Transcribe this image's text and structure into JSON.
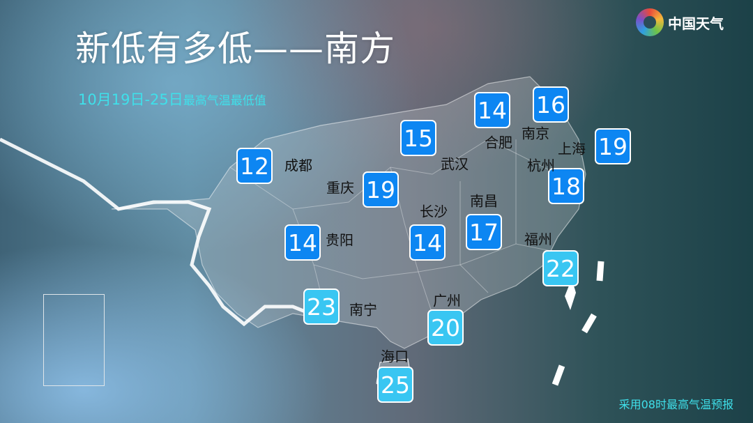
{
  "header": {
    "title": "新低有多低——南方",
    "subtitle_date": "10月19日-25日",
    "subtitle_desc": "最高气温最低值"
  },
  "logo": {
    "text": "中国天气"
  },
  "cities": [
    {
      "name": "成都",
      "value": "12",
      "tone": "cool"
    },
    {
      "name": "合肥",
      "value": "14",
      "tone": "cool"
    },
    {
      "name": "南京",
      "value": "16",
      "tone": "cool"
    },
    {
      "name": "武汉",
      "value": "15",
      "tone": "cool"
    },
    {
      "name": "重庆",
      "value": "19",
      "tone": "cool"
    },
    {
      "name": "上海",
      "value": "19",
      "tone": "cool"
    },
    {
      "name": "杭州",
      "value": "18",
      "tone": "cool"
    },
    {
      "name": "贵阳",
      "value": "14",
      "tone": "cool"
    },
    {
      "name": "长沙",
      "value": "14",
      "tone": "cool"
    },
    {
      "name": "南昌",
      "value": "17",
      "tone": "cool"
    },
    {
      "name": "福州",
      "value": "22",
      "tone": "warm"
    },
    {
      "name": "南宁",
      "value": "23",
      "tone": "warm"
    },
    {
      "name": "广州",
      "value": "20",
      "tone": "warm"
    },
    {
      "name": "海口",
      "value": "25",
      "tone": "warm"
    }
  ],
  "colors": {
    "cool": "#0d86f2",
    "warm": "#39c6f2",
    "accent": "#3fe0ea"
  },
  "footer": {
    "note": "采用08时最高气温预报"
  }
}
